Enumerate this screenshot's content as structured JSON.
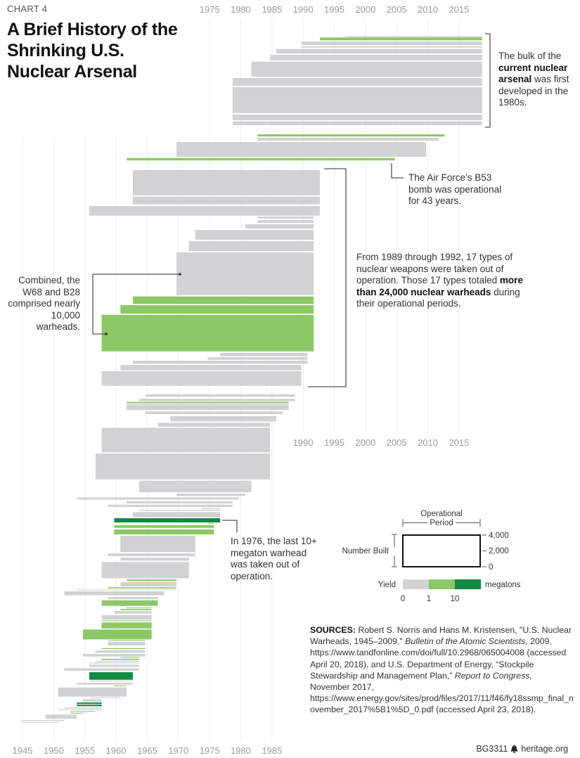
{
  "header": {
    "kicker": "CHART 4",
    "title": "A Brief History of the Shrinking U.S. Nuclear Arsenal"
  },
  "annotations": {
    "current": {
      "pre": "The bulk of the ",
      "bold": "current nuclear arsenal",
      "post": " was first developed in the 1980s."
    },
    "b53": "The Air Force’s B53 bomb was operational for 43 years.",
    "retired": {
      "pre": "From 1989 through 1992, 17 types of nuclear weapons were taken out of operation. Those 17 types totaled ",
      "bold": "more than 24,000 nuclear warheads",
      "post": " during their operational periods."
    },
    "w68": "Combined, the W68 and B28 comprised nearly 10,000 warheads.",
    "megaton": "In 1976, the last 10+ megaton warhead was taken out of operation."
  },
  "legend": {
    "period_label": "Operational Period",
    "built_label": "Number Built",
    "built_ticks": [
      "4,000",
      "2,000",
      "0"
    ],
    "yield_label": "Yield",
    "yield_unit": "megatons",
    "yield_ticks": [
      "0",
      "1",
      "10"
    ]
  },
  "sources": {
    "label": "SOURCES:",
    "p1": " Robert S. Norris and Hans M. Kristensen, \"U.S. Nuclear Warheads, 1945–2009,\" ",
    "i1": "Bulletin of the Atomic Scientists,",
    "p2": " 2009, https://www.tandfonline.com/doi/full/10.2968/065004008 (accessed April 20, 2018), and U.S. Department of Energy, “Stockpile Stewardship and Management Plan,” ",
    "i2": "Report to Congress,",
    "p3": " November 2017, https://www.energy.gov/sites/prod/files/2017/11/f46/fy18ssmp_final_november_2017%5B1%5D_0.pdf (accessed April 23, 2018)."
  },
  "footer": {
    "code": "BG3311",
    "site": "heritage.org",
    "icon": "liberty-bell-icon"
  },
  "chart_data": {
    "type": "bar",
    "orientation": "horizontal-range",
    "title": "A Brief History of the Shrinking U.S. Nuclear Arsenal",
    "xlabel": "",
    "ylabel": "",
    "x_ticks_top": [
      "1975",
      "1980",
      "1985",
      "1990",
      "1995",
      "2000",
      "2005",
      "2010",
      "2015"
    ],
    "x_ticks_middle": [
      "1990",
      "1995",
      "2000",
      "2005",
      "2010",
      "2015"
    ],
    "x_ticks_bottom": [
      "1945",
      "1950",
      "1955",
      "1960",
      "1965",
      "1970",
      "1975",
      "1980",
      "1985"
    ],
    "xlim": [
      1944,
      2019
    ],
    "grid": "vertical",
    "bar_height_meaning": "number built (4,000 = legend box height)",
    "yield_classes": [
      "0–1 megatons",
      "1–10 megatons",
      "10+ megatons"
    ],
    "colors": {
      "yield_0": "#d1d2d4",
      "yield_1": "#8cc866",
      "yield_2": "#118a42"
    },
    "bar_fields": [
      "start_year",
      "end_year",
      "number_built",
      "yield_class"
    ],
    "bars": [
      [
        1996,
        2018,
        130,
        0
      ],
      [
        1992,
        2018,
        350,
        1
      ],
      [
        1989,
        2018,
        450,
        0
      ],
      [
        1989,
        2018,
        180,
        0
      ],
      [
        1985,
        2018,
        560,
        0
      ],
      [
        1984,
        2018,
        700,
        0
      ],
      [
        1981,
        2018,
        1900,
        0
      ],
      [
        1978,
        2018,
        970,
        0
      ],
      [
        1978,
        2018,
        3270,
        0
      ],
      [
        1978,
        2018,
        700,
        0
      ],
      [
        1978,
        2018,
        470,
        0
      ],
      [
        1982,
        2012,
        270,
        1
      ],
      [
        1982,
        2011,
        350,
        0
      ],
      [
        1969,
        2009,
        1860,
        0
      ],
      [
        1961,
        2004,
        300,
        1
      ],
      [
        1962,
        1992,
        3200,
        0
      ],
      [
        1962,
        1992,
        970,
        0
      ],
      [
        1955,
        1992,
        1200,
        0
      ],
      [
        1982,
        1991,
        240,
        0
      ],
      [
        1982,
        1991,
        350,
        0
      ],
      [
        1980,
        1991,
        530,
        0
      ],
      [
        1972,
        1991,
        1240,
        0
      ],
      [
        1971,
        1991,
        1270,
        0
      ],
      [
        1969,
        1991,
        5370,
        0
      ],
      [
        1962,
        1991,
        940,
        1
      ],
      [
        1960,
        1991,
        1060,
        1
      ],
      [
        1957,
        1991,
        4600,
        1
      ],
      [
        1976,
        1990,
        440,
        0
      ],
      [
        1974,
        1990,
        330,
        0
      ],
      [
        1962,
        1990,
        380,
        0
      ],
      [
        1960,
        1989,
        680,
        0
      ],
      [
        1957,
        1989,
        1830,
        0
      ],
      [
        1964,
        1988,
        320,
        0
      ],
      [
        1963,
        1988,
        330,
        0
      ],
      [
        1961,
        1987,
        180,
        1
      ],
      [
        1961,
        1987,
        730,
        0
      ],
      [
        1964,
        1986,
        350,
        0
      ],
      [
        1968,
        1985,
        670,
        0
      ],
      [
        1966,
        1984,
        500,
        0
      ],
      [
        1957,
        1984,
        3100,
        0
      ],
      [
        1956,
        1984,
        3250,
        0
      ],
      [
        1963,
        1981,
        1440,
        0
      ],
      [
        1969,
        1980,
        290,
        0
      ],
      [
        1953,
        1979,
        270,
        0
      ],
      [
        1961,
        1978,
        290,
        0
      ],
      [
        1958,
        1978,
        290,
        0
      ],
      [
        1973,
        1976,
        130,
        0
      ],
      [
        1963,
        1976,
        120,
        0
      ],
      [
        1962,
        1976,
        650,
        0
      ],
      [
        1959,
        1976,
        530,
        2
      ],
      [
        1974,
        1975,
        90,
        1
      ],
      [
        1959,
        1975,
        330,
        1
      ],
      [
        1959,
        1975,
        620,
        1
      ],
      [
        1960,
        1972,
        2040,
        0
      ],
      [
        1958,
        1972,
        350,
        0
      ],
      [
        1960,
        1971,
        380,
        0
      ],
      [
        1957,
        1971,
        2040,
        0
      ],
      [
        1961,
        1969,
        180,
        1
      ],
      [
        1960,
        1969,
        560,
        0
      ],
      [
        1958,
        1969,
        150,
        1
      ],
      [
        1953,
        1969,
        90,
        0
      ],
      [
        1951,
        1967,
        500,
        0
      ],
      [
        1958,
        1966,
        270,
        0
      ],
      [
        1957,
        1966,
        700,
        1
      ],
      [
        1961,
        1965,
        90,
        1
      ],
      [
        1960,
        1965,
        150,
        1
      ],
      [
        1959,
        1965,
        330,
        0
      ],
      [
        1957,
        1965,
        580,
        0
      ],
      [
        1957,
        1965,
        90,
        1
      ],
      [
        1957,
        1965,
        740,
        1
      ],
      [
        1954,
        1965,
        1240,
        1
      ],
      [
        1958,
        1964,
        90,
        1
      ],
      [
        1958,
        1964,
        440,
        0
      ],
      [
        1957,
        1964,
        120,
        1
      ],
      [
        1956,
        1964,
        290,
        0
      ],
      [
        1954,
        1964,
        330,
        0
      ],
      [
        1960,
        1963,
        90,
        1
      ],
      [
        1957,
        1963,
        150,
        1
      ],
      [
        1956,
        1963,
        120,
        0
      ],
      [
        1955,
        1963,
        90,
        0
      ],
      [
        1955,
        1963,
        270,
        0
      ],
      [
        1951,
        1963,
        330,
        0
      ],
      [
        1955,
        1962,
        950,
        2
      ],
      [
        1955,
        1962,
        90,
        0
      ],
      [
        1953,
        1962,
        240,
        0
      ],
      [
        1959,
        1961,
        90,
        1
      ],
      [
        1950,
        1961,
        1150,
        0
      ],
      [
        1955,
        1960,
        90,
        0
      ],
      [
        1954,
        1957,
        330,
        0
      ],
      [
        1953,
        1957,
        180,
        2
      ],
      [
        1953,
        1957,
        200,
        2
      ],
      [
        1951,
        1957,
        150,
        0
      ],
      [
        1950,
        1957,
        90,
        0
      ],
      [
        1952,
        1956,
        180,
        0
      ],
      [
        1952,
        1954,
        90,
        1
      ],
      [
        1948,
        1953,
        530,
        0
      ],
      [
        1944,
        1951,
        120,
        0
      ],
      [
        1944,
        1950,
        90,
        0
      ]
    ]
  }
}
